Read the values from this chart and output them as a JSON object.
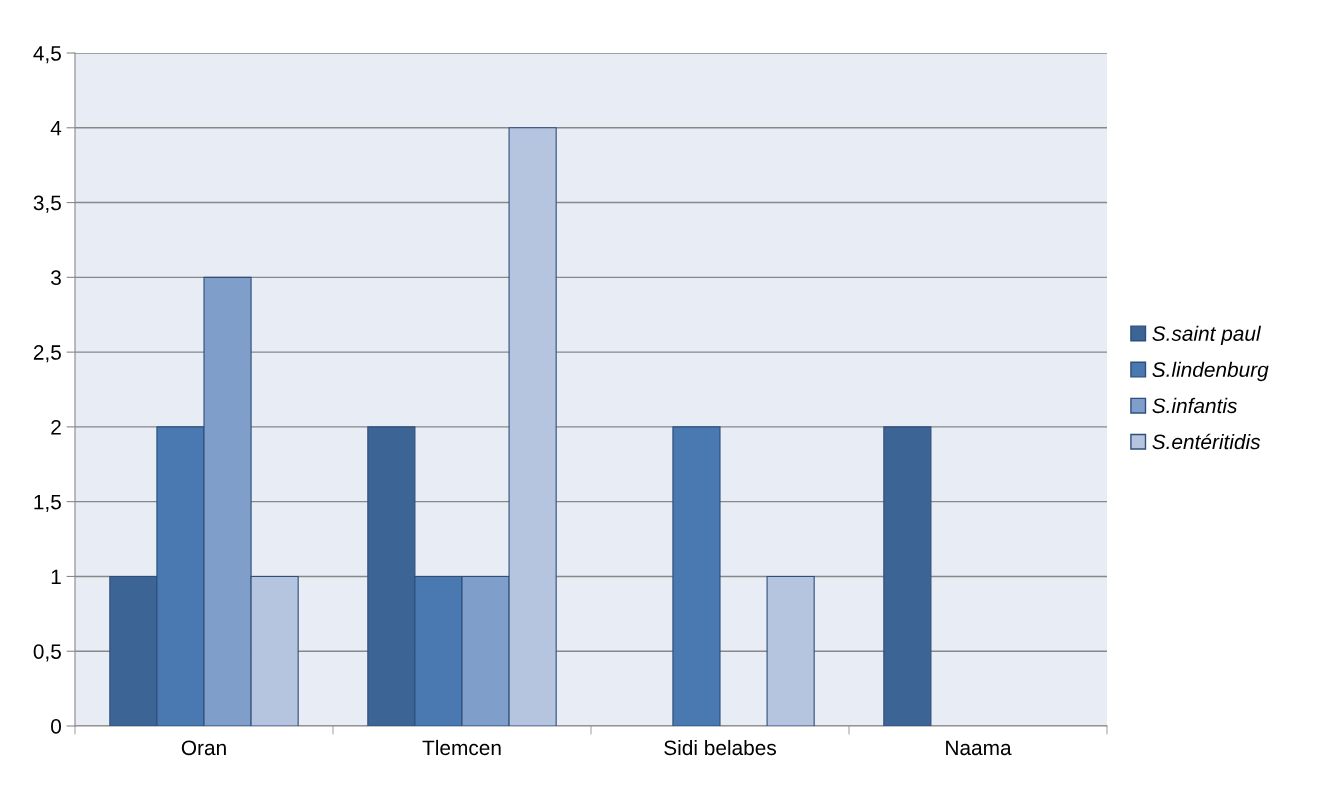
{
  "chart_data": {
    "type": "bar",
    "categories": [
      "Oran",
      "Tlemcen",
      "Sidi belabes",
      "Naama"
    ],
    "series": [
      {
        "name": "S.saint paul",
        "color": "#3c6494",
        "values": [
          1,
          2,
          null,
          2
        ]
      },
      {
        "name": "S.lindenburg",
        "color": "#4a78b0",
        "values": [
          2,
          1,
          2,
          null
        ]
      },
      {
        "name": "S.infantis",
        "color": "#7f9ec9",
        "values": [
          3,
          1,
          null,
          null
        ]
      },
      {
        "name": "S.entéritidis",
        "color": "#b5c4df",
        "values": [
          1,
          4,
          1,
          null
        ]
      }
    ],
    "ylim": [
      0,
      4.5
    ],
    "yticks": [
      0,
      {
        "value": 0.5,
        "label": "0,5"
      },
      1,
      {
        "value": 1.5,
        "label": "1,5"
      },
      2,
      {
        "value": 2.5,
        "label": "2,5"
      },
      3,
      {
        "value": 3.5,
        "label": "3,5"
      },
      4,
      {
        "value": 4.5,
        "label": "4,5"
      }
    ],
    "grid": "y",
    "legend": "right"
  }
}
